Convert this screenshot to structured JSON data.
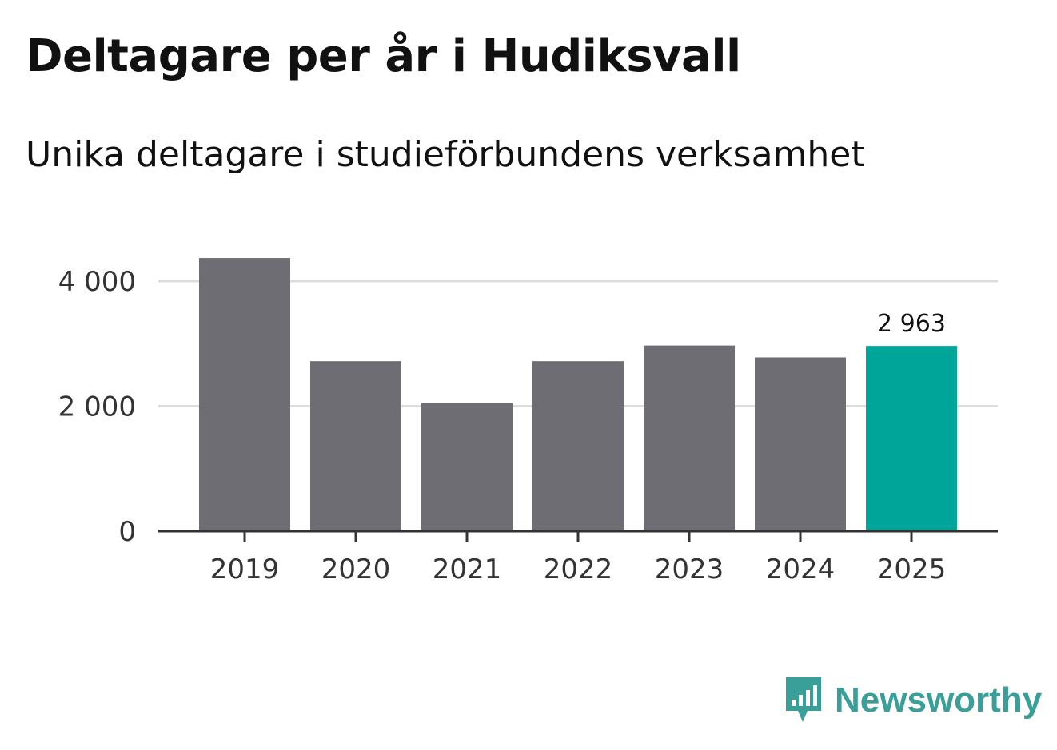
{
  "chart_data": {
    "type": "bar",
    "title": "Deltagare per år i Hudiksvall",
    "subtitle": "Unika deltagare i studieförbundens verksamhet",
    "categories": [
      "2019",
      "2020",
      "2021",
      "2022",
      "2023",
      "2024",
      "2025"
    ],
    "values": [
      4370,
      2720,
      2050,
      2720,
      2970,
      2780,
      2963
    ],
    "ylim": [
      0,
      4600
    ],
    "yticks": [
      0,
      2000,
      4000
    ],
    "ytick_labels": [
      "0",
      "2 000",
      "4 000"
    ],
    "highlight_index": 6,
    "data_labels": [
      {
        "index": 6,
        "text": "2 963"
      }
    ],
    "xlabel": "",
    "ylabel": "",
    "grid": true,
    "legend": "none"
  },
  "colors": {
    "bar": "#6e6d73",
    "highlight": "#00a59a",
    "grid": "#dddddd",
    "axis": "#333333",
    "brand": "#3a9e99"
  },
  "brand": {
    "name": "Newsworthy",
    "icon": "newsworthy-logo-icon"
  }
}
